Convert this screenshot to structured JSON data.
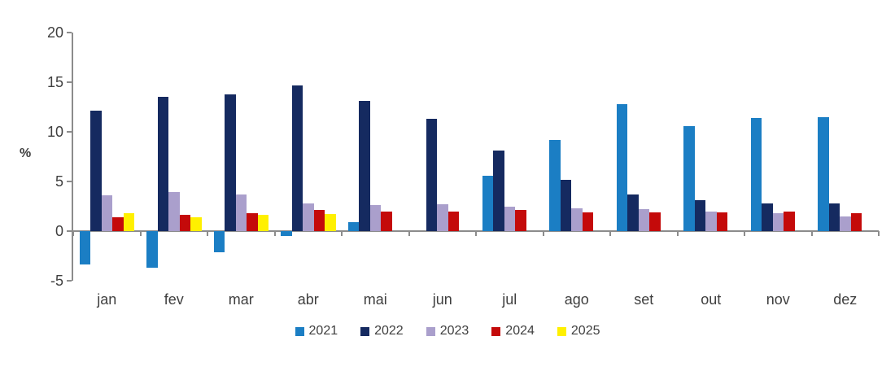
{
  "chart_data": {
    "type": "bar",
    "title": "",
    "ylabel": "%",
    "xlabel": "",
    "categories": [
      "jan",
      "fev",
      "mar",
      "abr",
      "mai",
      "jun",
      "jul",
      "ago",
      "set",
      "out",
      "nov",
      "dez"
    ],
    "series": [
      {
        "name": "2021",
        "color": "#1b7ec4",
        "values": [
          -3.4,
          -3.7,
          -2.1,
          -0.5,
          0.9,
          null,
          5.6,
          9.2,
          12.8,
          10.6,
          11.4,
          11.5
        ]
      },
      {
        "name": "2022",
        "color": "#152a60",
        "values": [
          12.1,
          13.5,
          13.8,
          14.7,
          13.1,
          11.3,
          8.1,
          5.2,
          3.7,
          3.1,
          2.8,
          2.8
        ]
      },
      {
        "name": "2023",
        "color": "#aa9fcc",
        "values": [
          3.6,
          3.9,
          3.7,
          2.8,
          2.6,
          2.7,
          2.5,
          2.3,
          2.2,
          2.0,
          1.8,
          1.5
        ]
      },
      {
        "name": "2024",
        "color": "#c40a0a",
        "values": [
          1.4,
          1.6,
          1.8,
          2.1,
          2.0,
          2.0,
          2.1,
          1.9,
          1.9,
          1.9,
          2.0,
          1.8
        ]
      },
      {
        "name": "2025",
        "color": "#fff000",
        "values": [
          1.8,
          1.4,
          1.6,
          1.7,
          null,
          null,
          null,
          null,
          null,
          null,
          null,
          null
        ]
      }
    ],
    "yticks": [
      20,
      15,
      10,
      5,
      0,
      -5
    ],
    "ylim": [
      -5,
      20
    ],
    "grid": false,
    "legend_position": "bottom"
  }
}
